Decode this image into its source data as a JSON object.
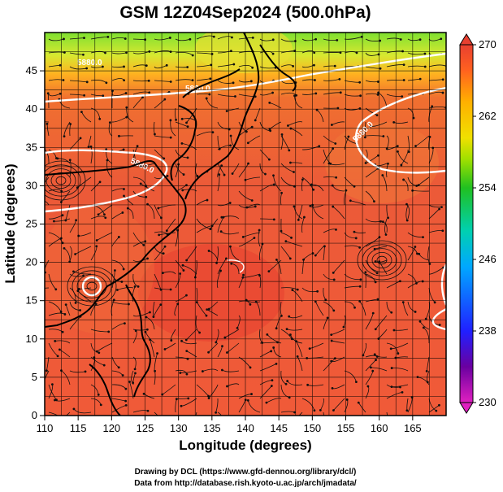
{
  "title": "GSM 12Z04Sep2024 (500.0hPa)",
  "x_axis": {
    "label": "Longitude (degrees)",
    "ticks": [
      "110",
      "115",
      "120",
      "125",
      "130",
      "135",
      "140",
      "145",
      "150",
      "155",
      "160",
      "165"
    ],
    "range": [
      110,
      170
    ]
  },
  "y_axis": {
    "label": "Latitude (degrees)",
    "ticks": [
      "0",
      "5",
      "10",
      "15",
      "20",
      "25",
      "30",
      "35",
      "40",
      "45"
    ],
    "range": [
      0,
      50
    ]
  },
  "colorbar": {
    "ticks": [
      "270",
      "262",
      "254",
      "246",
      "238",
      "230"
    ],
    "range": [
      230,
      270
    ],
    "colors": [
      "#e020c0",
      "#6a00a0",
      "#2020ff",
      "#00a8ff",
      "#00d0b0",
      "#20c020",
      "#a0e000",
      "#f0e000",
      "#ffb000",
      "#ff6020",
      "#e84030"
    ]
  },
  "contour_labels": [
    "5880.0",
    "5880.0",
    "5880.0",
    "5880.0"
  ],
  "credits": {
    "line1": "Drawing by DCL (https://www.gfd-dennou.org/library/dcl/)",
    "line2": "Data from http://database.rish.kyoto-u.ac.jp/arch/jmadata/"
  },
  "map_features": {
    "cyclone_center": {
      "lon": 117,
      "lat": 19
    }
  }
}
